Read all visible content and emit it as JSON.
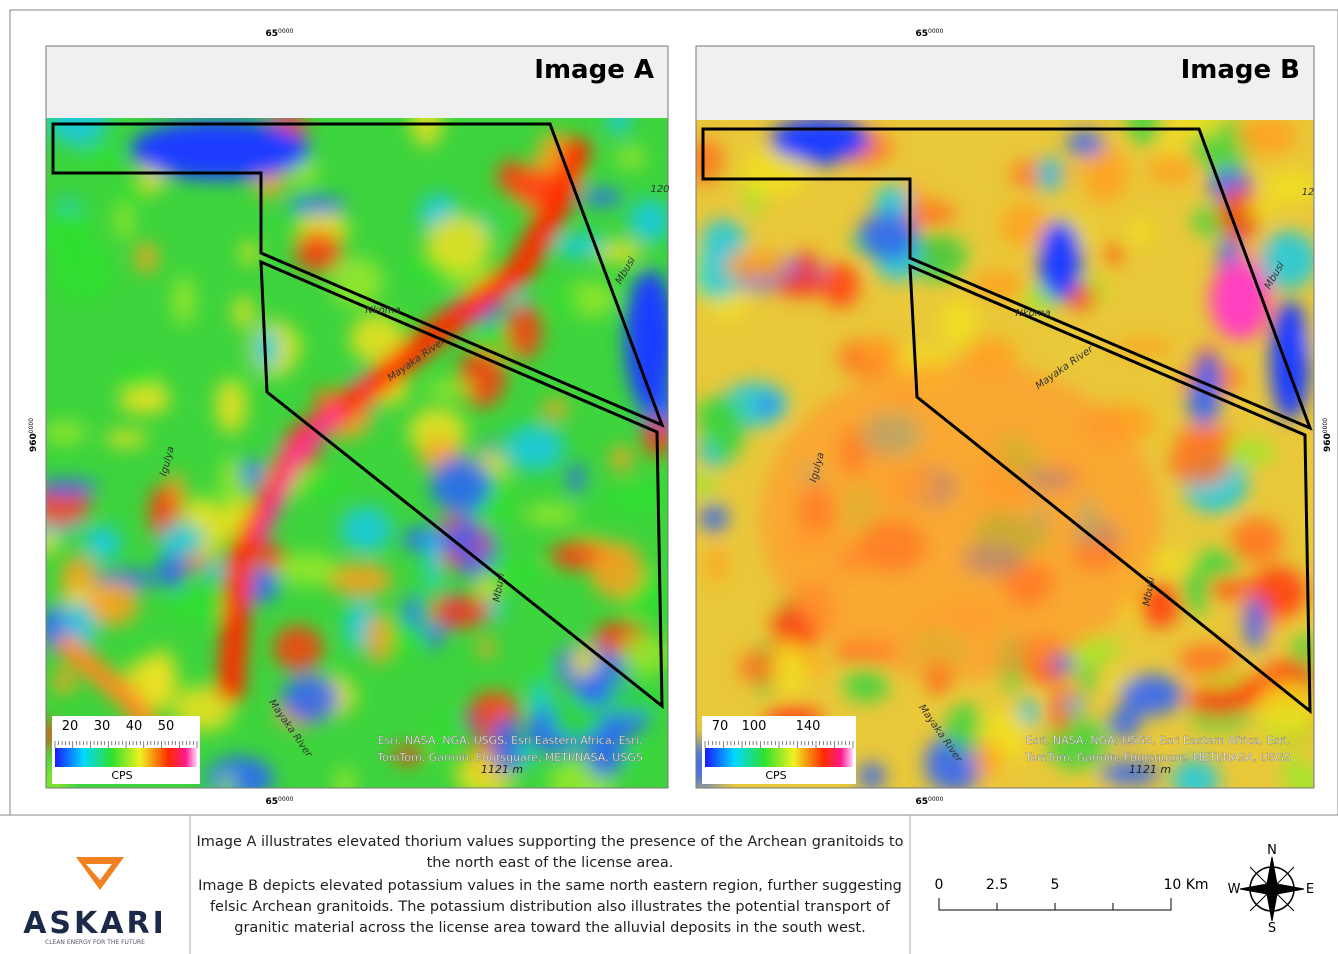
{
  "panels": [
    {
      "title": "Image A",
      "easting": {
        "main": "65",
        "sup": "0000"
      },
      "northing": {
        "main": "960",
        "sup": "0000"
      },
      "rivers": [
        "Nkoma",
        "Mayaka River",
        "Igulya",
        "Mbusi",
        "Mbusi",
        "120",
        "Mayaka River"
      ],
      "attribution": [
        "Esri, NASA, NGA, USGS, Esri Eastern Africa, Esri,",
        "TomTom, Garmin, Foursquare, METI/NASA, USGS"
      ],
      "elevation": "1121 m",
      "legend": {
        "ticks": [
          20,
          30,
          40,
          50
        ],
        "unit": "CPS"
      }
    },
    {
      "title": "Image B",
      "easting": {
        "main": "65",
        "sup": "0000"
      },
      "northing": {
        "main": "960",
        "sup": "0000"
      },
      "rivers": [
        "Nkoma",
        "Mayaka River",
        "Igulya",
        "Mbusi",
        "Mbusi",
        "12",
        "Mayaka River"
      ],
      "attribution": [
        "Esri, NASA, NGA, USGS, Esri Eastern Africa, Esri,",
        "TomTom, Garmin, Foursquare, METI/NASA, USGS"
      ],
      "elevation": "1121 m",
      "legend": {
        "ticks": [
          70,
          100,
          140
        ],
        "unit": "CPS"
      }
    }
  ],
  "caption": [
    "Image A illustrates elevated thorium values supporting the presence of the Archean granitoids to the north east of the license area.",
    "Image B depicts elevated potassium values in the same north eastern region, further suggesting felsic Archean granitoids. The potassium distribution also illustrates the potential transport of granitic material across the license area toward the alluvial deposits in the south west."
  ],
  "scale_bar": {
    "labels": [
      "0",
      "2.5",
      "5",
      "10 Km"
    ]
  },
  "compass": {
    "n": "N",
    "s": "S",
    "e": "E",
    "w": "W"
  },
  "logo": {
    "name": "ASKARI",
    "tagline": "CLEAN ENERGY FOR THE FUTURE"
  }
}
